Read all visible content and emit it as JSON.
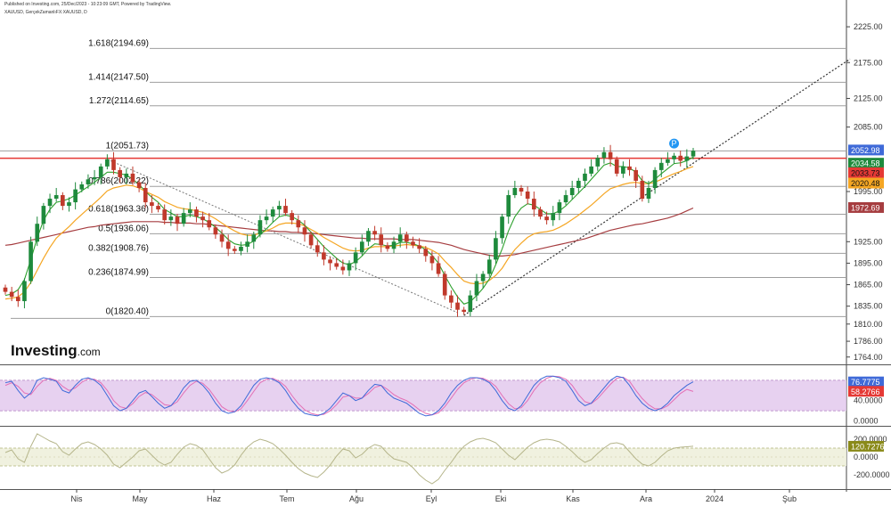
{
  "header": {
    "line1": "Published on Investing.com, 25/Dec/2023 - 10:23:09 GMT, Powered by TradingView.",
    "line2": "XAUUSD, GerçekZamanlıFX:XAUUSD, D"
  },
  "brand": {
    "name": "Investing",
    "domain": ".com"
  },
  "colors": {
    "up": "#1e8a3c",
    "down": "#c0392b",
    "ema_fast": "#2ca02c",
    "ema_mid": "#f5a623",
    "ema_slow": "#a63d40",
    "resistance": "#e53935",
    "stoch_fill": "#e1c6ec",
    "cci_fill": "#eef0dc",
    "k_line": "#3f6ad8",
    "d_line": "#e46fb5"
  },
  "chart_data": [
    {
      "type": "candlestick",
      "title": "XAUUSD, GerçekZamanlıFX:XAUUSD, D",
      "x_ticks": [
        "Nis",
        "May",
        "Haz",
        "Tem",
        "Ağu",
        "Eyl",
        "Eki",
        "Kas",
        "Ara",
        "2024",
        "Şub"
      ],
      "y_ticks": [
        2225.0,
        2175.0,
        2125.0,
        2085.0,
        1995.0,
        1925.0,
        1895.0,
        1865.0,
        1835.0,
        1810.0,
        1786.0,
        1764.0
      ],
      "y_tick_labels": [
        "2225.00",
        "2175.00",
        "2125.00",
        "2085.00",
        "1995.00",
        "1925.00",
        "1895.00",
        "1865.00",
        "1835.00",
        "1810.00",
        "1786.00",
        "1764.00"
      ],
      "ylim": [
        1755,
        2240
      ],
      "fib_levels": [
        {
          "label": "1.618(2194.69)",
          "value": 2194.69
        },
        {
          "label": "1.414(2147.50)",
          "value": 2147.5
        },
        {
          "label": "1.272(2114.65)",
          "value": 2114.65
        },
        {
          "label": "1(2051.73)",
          "value": 2051.73
        },
        {
          "label": "0.786(2002.22)",
          "value": 2002.22
        },
        {
          "label": "0.618(1963.36)",
          "value": 1963.36
        },
        {
          "label": "0.5(1936.06)",
          "value": 1936.06
        },
        {
          "label": "0.382(1908.76)",
          "value": 1908.76
        },
        {
          "label": "0.236(1874.99)",
          "value": 1874.99
        },
        {
          "label": "0(1820.40)",
          "value": 1820.4
        }
      ],
      "resistance": 2041.5,
      "price_tags": [
        {
          "label": "2052.98",
          "value": 2052.98,
          "bg": "#3f6ad8",
          "fg": "#ffffff"
        },
        {
          "label": "2034.58",
          "value": 2034.58,
          "bg": "#1e8a3c",
          "fg": "#ffffff"
        },
        {
          "label": "2033.73",
          "value": 2033.73,
          "bg": "#e53935",
          "fg": "#111111"
        },
        {
          "label": "2020.48",
          "value": 2020.48,
          "bg": "#f5a623",
          "fg": "#111111"
        },
        {
          "label": "1972.69",
          "value": 1972.69,
          "bg": "#a63d40",
          "fg": "#ffffff"
        }
      ],
      "closes": [
        1855,
        1848,
        1842,
        1870,
        1925,
        1950,
        1975,
        1985,
        1990,
        1975,
        1980,
        1998,
        2005,
        2012,
        2015,
        2030,
        2040,
        2025,
        2015,
        2020,
        2008,
        2000,
        1980,
        1975,
        1970,
        1955,
        1960,
        1950,
        1965,
        1970,
        1960,
        1955,
        1945,
        1935,
        1925,
        1915,
        1912,
        1918,
        1925,
        1935,
        1955,
        1960,
        1970,
        1975,
        1965,
        1955,
        1945,
        1935,
        1920,
        1910,
        1900,
        1895,
        1890,
        1885,
        1895,
        1910,
        1925,
        1940,
        1935,
        1920,
        1915,
        1925,
        1935,
        1925,
        1920,
        1915,
        1905,
        1895,
        1880,
        1850,
        1840,
        1830,
        1827,
        1850,
        1870,
        1880,
        1900,
        1930,
        1960,
        1990,
        2000,
        1995,
        1985,
        1970,
        1960,
        1955,
        1965,
        1980,
        1990,
        2000,
        2010,
        2020,
        2030,
        2042,
        2050,
        2040,
        2020,
        2030,
        2025,
        2010,
        1985,
        2000,
        2025,
        2035,
        2040,
        2045,
        2038,
        2044,
        2052
      ],
      "ema_fast": [
        1850,
        1852,
        1858,
        1872,
        1900,
        1930,
        1955,
        1970,
        1980,
        1982,
        1985,
        1990,
        1996,
        2002,
        2008,
        2015,
        2022,
        2022,
        2020,
        2018,
        2012,
        2005,
        1995,
        1987,
        1980,
        1970,
        1965,
        1960,
        1960,
        1962,
        1960,
        1957,
        1952,
        1945,
        1937,
        1928,
        1922,
        1920,
        1921,
        1926,
        1935,
        1943,
        1952,
        1960,
        1962,
        1960,
        1955,
        1948,
        1938,
        1928,
        1918,
        1910,
        1902,
        1895,
        1893,
        1897,
        1905,
        1915,
        1922,
        1921,
        1919,
        1920,
        1924,
        1924,
        1922,
        1919,
        1914,
        1906,
        1895,
        1878,
        1862,
        1848,
        1838,
        1841,
        1850,
        1860,
        1873,
        1893,
        1915,
        1940,
        1960,
        1972,
        1978,
        1976,
        1970,
        1964,
        1964,
        1968,
        1975,
        1984,
        1993,
        2002,
        2012,
        2022,
        2032,
        2035,
        2030,
        2030,
        2028,
        2022,
        2010,
        2006,
        2012,
        2020,
        2027,
        2034,
        2035,
        2038,
        2043
      ],
      "ema_mid": [
        1845,
        1846,
        1848,
        1855,
        1868,
        1885,
        1902,
        1917,
        1930,
        1938,
        1946,
        1955,
        1963,
        1971,
        1979,
        1987,
        1996,
        2000,
        2002,
        2004,
        2003,
        2000,
        1995,
        1991,
        1987,
        1981,
        1977,
        1973,
        1971,
        1970,
        1968,
        1966,
        1962,
        1957,
        1951,
        1945,
        1940,
        1936,
        1934,
        1934,
        1937,
        1940,
        1944,
        1949,
        1951,
        1951,
        1950,
        1947,
        1942,
        1937,
        1931,
        1926,
        1921,
        1916,
        1913,
        1912,
        1913,
        1916,
        1918,
        1918,
        1918,
        1919,
        1920,
        1921,
        1920,
        1919,
        1917,
        1913,
        1908,
        1898,
        1889,
        1879,
        1870,
        1867,
        1866,
        1867,
        1871,
        1878,
        1888,
        1902,
        1914,
        1923,
        1931,
        1936,
        1938,
        1939,
        1941,
        1945,
        1950,
        1956,
        1962,
        1969,
        1976,
        1984,
        1992,
        1999,
        2002,
        2005,
        2007,
        2008,
        2006,
        2006,
        2008,
        2012,
        2016,
        2020,
        2023,
        2027,
        2030
      ],
      "ema_slow": [
        1920,
        1921,
        1923,
        1925,
        1927,
        1929,
        1931,
        1933,
        1935,
        1937,
        1939,
        1941,
        1943,
        1945,
        1946,
        1948,
        1949,
        1950,
        1951,
        1952,
        1953,
        1953,
        1953,
        1953,
        1953,
        1952,
        1952,
        1951,
        1951,
        1951,
        1950,
        1950,
        1949,
        1948,
        1947,
        1946,
        1945,
        1944,
        1943,
        1942,
        1941,
        1940,
        1940,
        1939,
        1939,
        1938,
        1938,
        1937,
        1937,
        1936,
        1935,
        1934,
        1933,
        1932,
        1931,
        1930,
        1930,
        1929,
        1929,
        1929,
        1929,
        1929,
        1928,
        1928,
        1928,
        1927,
        1926,
        1925,
        1924,
        1922,
        1920,
        1917,
        1914,
        1912,
        1910,
        1908,
        1906,
        1905,
        1905,
        1906,
        1907,
        1909,
        1911,
        1913,
        1915,
        1917,
        1919,
        1921,
        1923,
        1925,
        1927,
        1929,
        1932,
        1935,
        1938,
        1941,
        1943,
        1945,
        1947,
        1949,
        1950,
        1952,
        1954,
        1956,
        1958,
        1961,
        1964,
        1968,
        1972
      ],
      "annotation": "P"
    },
    {
      "type": "line",
      "title": "Stochastic",
      "y_ticks": [
        80.0,
        40.0,
        0.0
      ],
      "y_tick_labels": [
        "80.0000",
        "40.0000",
        "0.0000"
      ],
      "ylim": [
        -6,
        106
      ],
      "band": [
        20,
        80
      ],
      "series": [
        {
          "name": "",
          "values": [
            75,
            78,
            60,
            45,
            55,
            80,
            85,
            82,
            78,
            60,
            55,
            70,
            82,
            85,
            80,
            70,
            50,
            30,
            20,
            25,
            40,
            55,
            60,
            48,
            35,
            25,
            30,
            45,
            65,
            78,
            80,
            70,
            55,
            35,
            20,
            15,
            18,
            30,
            50,
            70,
            82,
            85,
            82,
            75,
            60,
            40,
            25,
            15,
            12,
            10,
            15,
            25,
            40,
            55,
            50,
            40,
            45,
            60,
            72,
            70,
            55,
            45,
            40,
            35,
            25,
            15,
            10,
            12,
            20,
            35,
            55,
            70,
            80,
            85,
            85,
            82,
            75,
            60,
            40,
            25,
            20,
            30,
            50,
            70,
            82,
            88,
            88,
            85,
            78,
            60,
            40,
            30,
            35,
            50,
            65,
            80,
            88,
            85,
            70,
            50,
            35,
            25,
            20,
            25,
            35,
            50,
            60,
            70,
            77
          ]
        },
        {
          "name": "",
          "values": [
            70,
            75,
            68,
            55,
            52,
            68,
            80,
            84,
            80,
            68,
            60,
            65,
            76,
            83,
            82,
            75,
            60,
            40,
            28,
            25,
            34,
            48,
            56,
            52,
            42,
            32,
            30,
            38,
            55,
            70,
            78,
            74,
            62,
            45,
            28,
            20,
            18,
            24,
            40,
            58,
            75,
            82,
            84,
            78,
            68,
            50,
            34,
            22,
            15,
            12,
            13,
            20,
            32,
            47,
            50,
            45,
            45,
            54,
            66,
            70,
            62,
            52,
            45,
            40,
            32,
            22,
            15,
            12,
            16,
            28,
            45,
            62,
            75,
            82,
            85,
            84,
            78,
            68,
            50,
            34,
            24,
            26,
            40,
            60,
            75,
            84,
            88,
            87,
            82,
            70,
            52,
            38,
            34,
            44,
            58,
            72,
            84,
            86,
            78,
            60,
            44,
            32,
            24,
            24,
            30,
            42,
            54,
            62,
            58
          ]
        }
      ],
      "readouts": [
        {
          "label": "76.7775",
          "value": 76.7775,
          "bg": "#3f6ad8",
          "fg": "#ffffff"
        },
        {
          "label": "58.2766",
          "value": 58.2766,
          "bg": "#e53935",
          "fg": "#ffffff"
        }
      ]
    },
    {
      "type": "line",
      "title": "CCI",
      "y_ticks": [
        200.0,
        0.0,
        -200.0
      ],
      "y_tick_labels": [
        "200.0000",
        "0.0000",
        "-200.0000"
      ],
      "ylim": [
        -330,
        330
      ],
      "band": [
        -100,
        100
      ],
      "series": [
        {
          "name": "",
          "values": [
            50,
            80,
            -20,
            -60,
            120,
            260,
            220,
            180,
            150,
            60,
            20,
            90,
            150,
            170,
            140,
            90,
            20,
            -80,
            -120,
            -60,
            0,
            70,
            90,
            20,
            -50,
            -90,
            -60,
            30,
            110,
            150,
            130,
            80,
            -20,
            -120,
            -180,
            -150,
            -90,
            20,
            110,
            170,
            200,
            180,
            150,
            90,
            20,
            -60,
            -130,
            -180,
            -210,
            -230,
            -170,
            -90,
            10,
            90,
            70,
            -10,
            30,
            100,
            140,
            120,
            40,
            -20,
            -40,
            -60,
            -120,
            -200,
            -260,
            -300,
            -250,
            -150,
            -60,
            40,
            120,
            170,
            200,
            210,
            190,
            160,
            90,
            20,
            -30,
            40,
            110,
            160,
            190,
            200,
            190,
            170,
            120,
            60,
            -10,
            -60,
            -30,
            40,
            100,
            150,
            160,
            140,
            60,
            -20,
            -80,
            -100,
            -60,
            10,
            70,
            100,
            110,
            115,
            121
          ]
        }
      ],
      "readouts": [
        {
          "label": "120.7276",
          "value": 120.7276,
          "bg": "#8a8a1a",
          "fg": "#ffffff"
        }
      ]
    }
  ]
}
